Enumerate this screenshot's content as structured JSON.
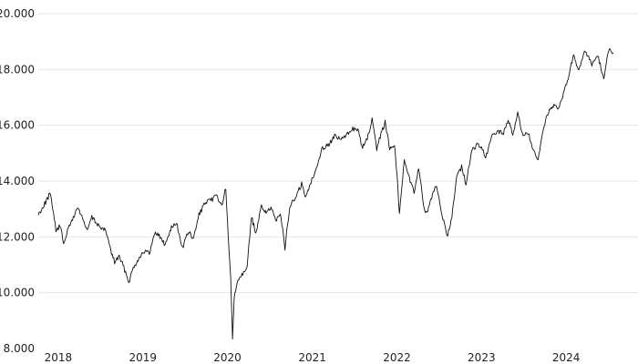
{
  "chart_data": {
    "type": "line",
    "title": "",
    "xlabel": "",
    "ylabel": "",
    "ylim": [
      8000,
      20000
    ],
    "xlim": [
      "2017-12-01",
      "2024-12-31"
    ],
    "grid": "horizontal",
    "y_ticks": [
      {
        "value": 8000,
        "label": "8.000"
      },
      {
        "value": 10000,
        "label": "10.000"
      },
      {
        "value": 12000,
        "label": "12.000"
      },
      {
        "value": 14000,
        "label": "14.000"
      },
      {
        "value": 16000,
        "label": "16.000"
      },
      {
        "value": 18000,
        "label": "18.000"
      },
      {
        "value": 20000,
        "label": "20.000"
      }
    ],
    "x_ticks": [
      {
        "value": "2018-01-01",
        "label": "2018"
      },
      {
        "value": "2019-01-01",
        "label": "2019"
      },
      {
        "value": "2020-01-01",
        "label": "2020"
      },
      {
        "value": "2021-01-01",
        "label": "2021"
      },
      {
        "value": "2022-01-01",
        "label": "2022"
      },
      {
        "value": "2023-01-01",
        "label": "2023"
      },
      {
        "value": "2024-01-01",
        "label": "2024"
      }
    ],
    "series": [
      {
        "color": "#111111",
        "points": [
          [
            "2017-12-01",
            12800
          ],
          [
            "2018-01-05",
            13300
          ],
          [
            "2018-01-20",
            13550
          ],
          [
            "2018-02-05",
            12900
          ],
          [
            "2018-02-15",
            12200
          ],
          [
            "2018-03-05",
            12400
          ],
          [
            "2018-03-20",
            11800
          ],
          [
            "2018-04-10",
            12300
          ],
          [
            "2018-05-01",
            12700
          ],
          [
            "2018-05-20",
            13050
          ],
          [
            "2018-06-10",
            12700
          ],
          [
            "2018-06-28",
            12200
          ],
          [
            "2018-07-20",
            12700
          ],
          [
            "2018-08-10",
            12500
          ],
          [
            "2018-08-30",
            12300
          ],
          [
            "2018-09-20",
            12200
          ],
          [
            "2018-10-10",
            11500
          ],
          [
            "2018-10-26",
            11100
          ],
          [
            "2018-11-15",
            11300
          ],
          [
            "2018-12-05",
            10900
          ],
          [
            "2018-12-27",
            10400
          ],
          [
            "2019-01-15",
            10900
          ],
          [
            "2019-02-05",
            11200
          ],
          [
            "2019-03-01",
            11500
          ],
          [
            "2019-03-25",
            11400
          ],
          [
            "2019-04-20",
            12200
          ],
          [
            "2019-05-10",
            12000
          ],
          [
            "2019-06-01",
            11700
          ],
          [
            "2019-06-25",
            12300
          ],
          [
            "2019-07-20",
            12500
          ],
          [
            "2019-08-15",
            11600
          ],
          [
            "2019-09-10",
            12200
          ],
          [
            "2019-10-01",
            11900
          ],
          [
            "2019-10-25",
            12800
          ],
          [
            "2019-11-20",
            13200
          ],
          [
            "2019-12-15",
            13300
          ],
          [
            "2020-01-10",
            13500
          ],
          [
            "2020-01-31",
            13100
          ],
          [
            "2020-02-18",
            13750
          ],
          [
            "2020-02-28",
            12000
          ],
          [
            "2020-03-10",
            10500
          ],
          [
            "2020-03-18",
            8400
          ],
          [
            "2020-03-25",
            9800
          ],
          [
            "2020-04-10",
            10500
          ],
          [
            "2020-05-01",
            10700
          ],
          [
            "2020-05-20",
            11000
          ],
          [
            "2020-06-08",
            12700
          ],
          [
            "2020-06-28",
            12100
          ],
          [
            "2020-07-20",
            13100
          ],
          [
            "2020-08-10",
            12900
          ],
          [
            "2020-08-31",
            13000
          ],
          [
            "2020-09-20",
            12600
          ],
          [
            "2020-10-10",
            12900
          ],
          [
            "2020-10-30",
            11600
          ],
          [
            "2020-11-20",
            13100
          ],
          [
            "2020-12-15",
            13400
          ],
          [
            "2021-01-10",
            13900
          ],
          [
            "2021-01-29",
            13400
          ],
          [
            "2021-02-20",
            14000
          ],
          [
            "2021-03-15",
            14500
          ],
          [
            "2021-04-10",
            15200
          ],
          [
            "2021-05-05",
            15300
          ],
          [
            "2021-06-01",
            15600
          ],
          [
            "2021-06-30",
            15500
          ],
          [
            "2021-07-20",
            15600
          ],
          [
            "2021-08-15",
            15900
          ],
          [
            "2021-09-10",
            15800
          ],
          [
            "2021-09-30",
            15200
          ],
          [
            "2021-10-20",
            15500
          ],
          [
            "2021-11-10",
            16200
          ],
          [
            "2021-11-30",
            15100
          ],
          [
            "2021-12-15",
            15600
          ],
          [
            "2022-01-05",
            16100
          ],
          [
            "2022-01-25",
            15200
          ],
          [
            "2022-02-15",
            15300
          ],
          [
            "2022-03-01",
            13800
          ],
          [
            "2022-03-08",
            12800
          ],
          [
            "2022-03-29",
            14800
          ],
          [
            "2022-04-20",
            14100
          ],
          [
            "2022-05-10",
            13600
          ],
          [
            "2022-05-30",
            14500
          ],
          [
            "2022-06-20",
            13100
          ],
          [
            "2022-07-05",
            12800
          ],
          [
            "2022-07-25",
            13400
          ],
          [
            "2022-08-15",
            13900
          ],
          [
            "2022-09-05",
            12900
          ],
          [
            "2022-09-29",
            12000
          ],
          [
            "2022-10-20",
            12700
          ],
          [
            "2022-11-10",
            14200
          ],
          [
            "2022-12-01",
            14500
          ],
          [
            "2022-12-20",
            13900
          ],
          [
            "2023-01-15",
            15100
          ],
          [
            "2023-02-05",
            15300
          ],
          [
            "2023-02-25",
            15200
          ],
          [
            "2023-03-15",
            14800
          ],
          [
            "2023-04-10",
            15600
          ],
          [
            "2023-05-05",
            15800
          ],
          [
            "2023-05-31",
            15700
          ],
          [
            "2023-06-20",
            16200
          ],
          [
            "2023-07-10",
            15700
          ],
          [
            "2023-07-31",
            16400
          ],
          [
            "2023-08-20",
            15700
          ],
          [
            "2023-09-15",
            15700
          ],
          [
            "2023-10-05",
            15100
          ],
          [
            "2023-10-27",
            14700
          ],
          [
            "2023-11-15",
            15700
          ],
          [
            "2023-12-05",
            16400
          ],
          [
            "2023-12-28",
            16700
          ],
          [
            "2024-01-20",
            16600
          ],
          [
            "2024-02-10",
            17000
          ],
          [
            "2024-03-05",
            17700
          ],
          [
            "2024-03-28",
            18500
          ],
          [
            "2024-04-20",
            17900
          ],
          [
            "2024-05-15",
            18700
          ],
          [
            "2024-06-15",
            18200
          ],
          [
            "2024-07-10",
            18500
          ],
          [
            "2024-08-05",
            17700
          ],
          [
            "2024-08-30",
            18800
          ],
          [
            "2024-09-15",
            18600
          ]
        ]
      }
    ]
  }
}
